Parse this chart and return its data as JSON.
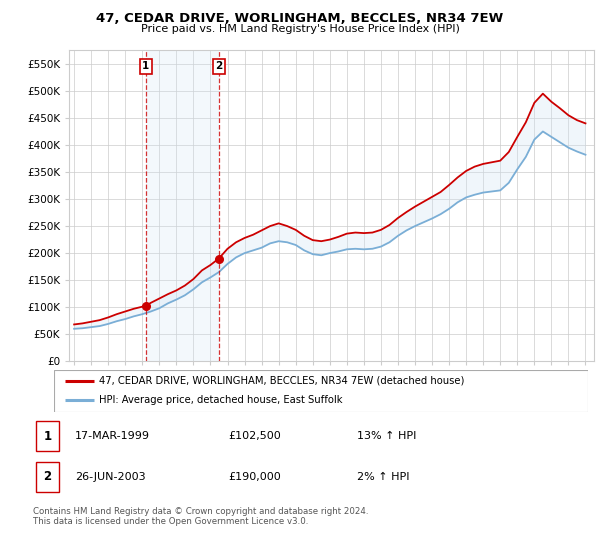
{
  "title": "47, CEDAR DRIVE, WORLINGHAM, BECCLES, NR34 7EW",
  "subtitle": "Price paid vs. HM Land Registry's House Price Index (HPI)",
  "legend_line1": "47, CEDAR DRIVE, WORLINGHAM, BECCLES, NR34 7EW (detached house)",
  "legend_line2": "HPI: Average price, detached house, East Suffolk",
  "transaction1_date": "17-MAR-1999",
  "transaction1_price": "£102,500",
  "transaction1_hpi": "13% ↑ HPI",
  "transaction2_date": "26-JUN-2003",
  "transaction2_price": "£190,000",
  "transaction2_hpi": "2% ↑ HPI",
  "footer": "Contains HM Land Registry data © Crown copyright and database right 2024.\nThis data is licensed under the Open Government Licence v3.0.",
  "ylim": [
    0,
    575000
  ],
  "yticks": [
    0,
    50000,
    100000,
    150000,
    200000,
    250000,
    300000,
    350000,
    400000,
    450000,
    500000,
    550000
  ],
  "red_color": "#cc0000",
  "blue_color": "#7aaed6",
  "shaded_color": "#d0e4f5",
  "grid_color": "#cccccc",
  "transaction1_x": 1999.21,
  "transaction2_x": 2003.49,
  "t1_price": 102500,
  "t2_price": 190000,
  "hpi_years": [
    1995.0,
    1995.5,
    1996.0,
    1996.5,
    1997.0,
    1997.5,
    1998.0,
    1998.5,
    1999.0,
    1999.5,
    2000.0,
    2000.5,
    2001.0,
    2001.5,
    2002.0,
    2002.5,
    2003.0,
    2003.5,
    2004.0,
    2004.5,
    2005.0,
    2005.5,
    2006.0,
    2006.5,
    2007.0,
    2007.5,
    2008.0,
    2008.5,
    2009.0,
    2009.5,
    2010.0,
    2010.5,
    2011.0,
    2011.5,
    2012.0,
    2012.5,
    2013.0,
    2013.5,
    2014.0,
    2014.5,
    2015.0,
    2015.5,
    2016.0,
    2016.5,
    2017.0,
    2017.5,
    2018.0,
    2018.5,
    2019.0,
    2019.5,
    2020.0,
    2020.5,
    2021.0,
    2021.5,
    2022.0,
    2022.5,
    2023.0,
    2023.5,
    2024.0,
    2024.5,
    2025.0
  ],
  "hpi_values": [
    60000,
    61000,
    63000,
    65000,
    69000,
    74000,
    78000,
    83000,
    87000,
    92000,
    98000,
    107000,
    114000,
    122000,
    133000,
    146000,
    155000,
    165000,
    180000,
    192000,
    200000,
    205000,
    210000,
    218000,
    222000,
    220000,
    215000,
    205000,
    198000,
    196000,
    200000,
    203000,
    207000,
    208000,
    207000,
    208000,
    212000,
    220000,
    232000,
    242000,
    250000,
    257000,
    264000,
    272000,
    282000,
    294000,
    303000,
    308000,
    312000,
    314000,
    316000,
    330000,
    355000,
    378000,
    410000,
    425000,
    415000,
    405000,
    395000,
    388000,
    382000
  ],
  "red_years": [
    1995.0,
    1995.5,
    1996.0,
    1996.5,
    1997.0,
    1997.5,
    1998.0,
    1998.5,
    1999.21,
    1999.5,
    2000.0,
    2000.5,
    2001.0,
    2001.5,
    2002.0,
    2002.5,
    2003.0,
    2003.49,
    2004.0,
    2004.5,
    2005.0,
    2005.5,
    2006.0,
    2006.5,
    2007.0,
    2007.5,
    2008.0,
    2008.5,
    2009.0,
    2009.5,
    2010.0,
    2010.5,
    2011.0,
    2011.5,
    2012.0,
    2012.5,
    2013.0,
    2013.5,
    2014.0,
    2014.5,
    2015.0,
    2015.5,
    2016.0,
    2016.5,
    2017.0,
    2017.5,
    2018.0,
    2018.5,
    2019.0,
    2019.5,
    2020.0,
    2020.5,
    2021.0,
    2021.5,
    2022.0,
    2022.5,
    2023.0,
    2023.5,
    2024.0,
    2024.5,
    2025.0
  ],
  "red_values": [
    68000,
    70000,
    73000,
    76000,
    81000,
    87000,
    92000,
    97000,
    102500,
    108000,
    116000,
    124000,
    131000,
    140000,
    152000,
    168000,
    178000,
    190000,
    208000,
    220000,
    228000,
    234000,
    242000,
    250000,
    255000,
    250000,
    243000,
    232000,
    224000,
    222000,
    225000,
    230000,
    236000,
    238000,
    237000,
    238000,
    243000,
    252000,
    265000,
    276000,
    286000,
    295000,
    304000,
    313000,
    326000,
    340000,
    352000,
    360000,
    365000,
    368000,
    371000,
    387000,
    415000,
    442000,
    478000,
    495000,
    480000,
    468000,
    455000,
    446000,
    440000
  ]
}
